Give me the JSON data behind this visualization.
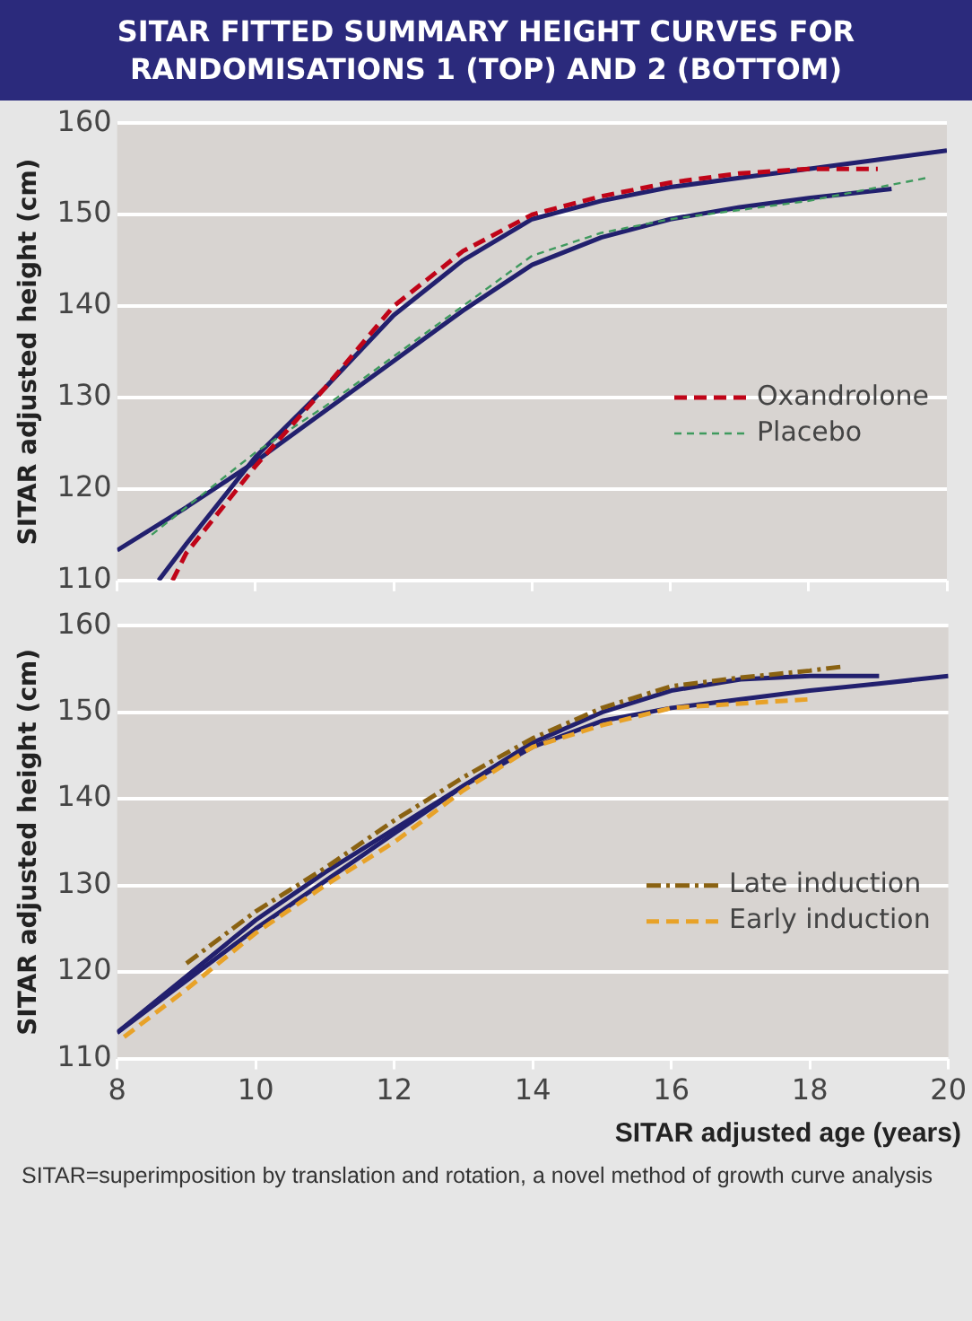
{
  "chart_data": [
    {
      "type": "line",
      "title": "SITAR FITTED SUMMARY HEIGHT CURVES FOR RANDOMISATIONS 1 (TOP) AND 2 (BOTTOM)",
      "ylabel": "SITAR adjusted height (cm)",
      "xlim": [
        8,
        20
      ],
      "xticks": [
        8,
        10,
        12,
        14,
        16,
        18,
        20
      ],
      "ylim": [
        110,
        160
      ],
      "yticks": [
        110,
        120,
        130,
        140,
        150,
        160
      ],
      "tick_labels": "y",
      "grid": "y",
      "legend": "right",
      "marker": "none",
      "series": [
        {
          "name": "Oxandrolone",
          "color": "#c00418",
          "line_style": "dashed",
          "x": [
            8.8,
            9,
            10,
            11,
            12,
            13,
            14,
            15,
            16,
            17,
            18,
            19
          ],
          "values": [
            110,
            113,
            122.5,
            131,
            140,
            146,
            150,
            152,
            153.5,
            154.5,
            155,
            155
          ]
        },
        {
          "name": "Placebo",
          "color": "#3f9a5e",
          "line_style": "dotted",
          "x": [
            8.5,
            9,
            10,
            11,
            12,
            13,
            14,
            15,
            16,
            17,
            18,
            19.7
          ],
          "values": [
            115,
            118,
            124,
            129,
            134.5,
            140,
            145.5,
            148,
            149.5,
            150.5,
            151.5,
            154
          ]
        },
        {
          "color": "#22206e",
          "line_style": "solid",
          "x": [
            8,
            9,
            10,
            11,
            12,
            13,
            14,
            15,
            16,
            17,
            18,
            19.2
          ],
          "values": [
            113.3,
            118,
            123,
            128.5,
            134,
            139.5,
            144.5,
            147.5,
            149.5,
            150.8,
            151.8,
            152.8
          ]
        },
        {
          "color": "#22206e",
          "line_style": "solid",
          "x": [
            8.6,
            9,
            10,
            11,
            12,
            13,
            14,
            15,
            16,
            17,
            18,
            19,
            20
          ],
          "values": [
            110,
            114,
            123.5,
            131,
            139,
            145,
            149.5,
            151.5,
            153,
            154,
            155,
            156,
            157
          ]
        }
      ]
    },
    {
      "type": "line",
      "xlabel": "SITAR adjusted age (years)",
      "ylabel": "SITAR adjusted height (cm)",
      "xlim": [
        8,
        20
      ],
      "xticks": [
        8,
        10,
        12,
        14,
        16,
        18,
        20
      ],
      "ylim": [
        110,
        160
      ],
      "yticks": [
        110,
        120,
        130,
        140,
        150,
        160
      ],
      "grid": "y",
      "legend": "right",
      "marker": "none",
      "annotations": [
        "SITAR=superimposition by translation and rotation, a novel method of growth curve analysis"
      ],
      "series": [
        {
          "name": "Late induction",
          "color": "#8a6212",
          "line_style": "dashdot",
          "x": [
            9,
            10,
            11,
            12,
            13,
            14,
            15,
            16,
            17,
            18,
            18.5
          ],
          "values": [
            121,
            127,
            132,
            137.5,
            142.5,
            147,
            150.5,
            153,
            154,
            154.8,
            155.3
          ]
        },
        {
          "name": "Early induction",
          "color": "#e8a228",
          "line_style": "dashed",
          "x": [
            8.1,
            9,
            10,
            11,
            12,
            13,
            14,
            15,
            16,
            17,
            18
          ],
          "values": [
            112.5,
            118,
            124.5,
            130,
            135,
            141,
            146,
            148.5,
            150.5,
            151,
            151.5
          ]
        },
        {
          "color": "#22206e",
          "line_style": "solid",
          "x": [
            8,
            9,
            10,
            11,
            12,
            13,
            14,
            15,
            16,
            17,
            18,
            19
          ],
          "values": [
            113,
            119.5,
            126,
            131.5,
            136.5,
            141.5,
            146.5,
            150,
            152.5,
            153.8,
            154.2,
            154.2
          ]
        },
        {
          "color": "#22206e",
          "line_style": "solid",
          "x": [
            8,
            9,
            10,
            11,
            12,
            13,
            14,
            15,
            16,
            17,
            18,
            19,
            20
          ],
          "values": [
            113,
            119,
            125,
            130.5,
            136,
            141.5,
            146,
            149,
            150.5,
            151.5,
            152.5,
            153.3,
            154.2
          ]
        }
      ]
    }
  ]
}
